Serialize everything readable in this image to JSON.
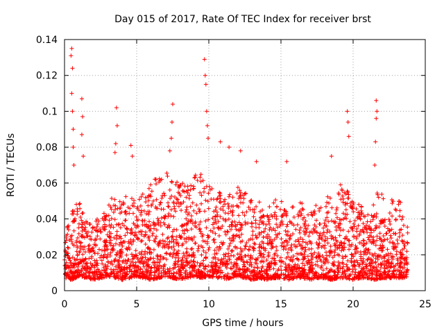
{
  "chart_data": {
    "type": "scatter",
    "title": "Day 015 of 2017, Rate Of TEC Index for receiver brst",
    "xlabel": "GPS time / hours",
    "ylabel": "ROTI / TECUs",
    "xlim": [
      0,
      25
    ],
    "ylim": [
      0,
      0.14
    ],
    "x_ticks": [
      0,
      5,
      10,
      15,
      20,
      25
    ],
    "x_tick_labels": [
      "0",
      "5",
      "10",
      "15",
      "20",
      "25"
    ],
    "y_ticks": [
      0,
      0.02,
      0.04,
      0.06,
      0.08,
      0.1,
      0.12,
      0.14
    ],
    "y_tick_labels": [
      "0",
      "0.02",
      "0.04",
      "0.06",
      "0.08",
      "0.1",
      "0.12",
      "0.14"
    ],
    "grid": true,
    "marker": "+",
    "color": "#ff0000",
    "series": [
      {
        "name": "ROTI",
        "envelope": {
          "x": [
            0,
            0.5,
            1,
            1.5,
            2,
            2.5,
            3,
            3.5,
            4,
            4.5,
            5,
            5.5,
            6,
            6.5,
            7,
            7.5,
            8,
            8.5,
            9,
            9.5,
            10,
            10.5,
            11,
            11.5,
            12,
            12.5,
            13,
            13.5,
            14,
            14.5,
            15,
            15.5,
            16,
            16.5,
            17,
            17.5,
            18,
            18.5,
            19,
            19.5,
            20,
            20.5,
            21,
            21.5,
            22,
            22.5,
            23,
            23.5,
            23.8
          ],
          "y_min": [
            0.007,
            0.006,
            0.008,
            0.007,
            0.006,
            0.007,
            0.008,
            0.007,
            0.006,
            0.007,
            0.008,
            0.007,
            0.006,
            0.007,
            0.008,
            0.007,
            0.006,
            0.007,
            0.008,
            0.007,
            0.008,
            0.007,
            0.006,
            0.007,
            0.008,
            0.007,
            0.006,
            0.007,
            0.006,
            0.007,
            0.007,
            0.006,
            0.007,
            0.007,
            0.006,
            0.007,
            0.007,
            0.006,
            0.007,
            0.007,
            0.006,
            0.007,
            0.007,
            0.006,
            0.007,
            0.007,
            0.007,
            0.007,
            0.008
          ],
          "y_max": [
            0.035,
            0.045,
            0.05,
            0.04,
            0.038,
            0.045,
            0.048,
            0.055,
            0.05,
            0.055,
            0.05,
            0.055,
            0.06,
            0.065,
            0.065,
            0.068,
            0.06,
            0.06,
            0.065,
            0.065,
            0.06,
            0.058,
            0.055,
            0.055,
            0.058,
            0.055,
            0.05,
            0.05,
            0.045,
            0.05,
            0.055,
            0.045,
            0.05,
            0.05,
            0.045,
            0.048,
            0.05,
            0.055,
            0.06,
            0.058,
            0.05,
            0.048,
            0.045,
            0.055,
            0.055,
            0.05,
            0.055,
            0.045,
            0.035
          ]
        },
        "spikes": [
          {
            "x": 0.5,
            "y": 0.135
          },
          {
            "x": 0.45,
            "y": 0.131
          },
          {
            "x": 0.55,
            "y": 0.124
          },
          {
            "x": 0.5,
            "y": 0.11
          },
          {
            "x": 0.55,
            "y": 0.1
          },
          {
            "x": 0.6,
            "y": 0.09
          },
          {
            "x": 0.6,
            "y": 0.08
          },
          {
            "x": 0.65,
            "y": 0.07
          },
          {
            "x": 1.2,
            "y": 0.107
          },
          {
            "x": 1.25,
            "y": 0.097
          },
          {
            "x": 1.2,
            "y": 0.087
          },
          {
            "x": 1.3,
            "y": 0.075
          },
          {
            "x": 3.6,
            "y": 0.102
          },
          {
            "x": 3.65,
            "y": 0.092
          },
          {
            "x": 3.55,
            "y": 0.082
          },
          {
            "x": 3.5,
            "y": 0.077
          },
          {
            "x": 4.6,
            "y": 0.081
          },
          {
            "x": 4.7,
            "y": 0.075
          },
          {
            "x": 7.5,
            "y": 0.104
          },
          {
            "x": 7.45,
            "y": 0.094
          },
          {
            "x": 7.4,
            "y": 0.085
          },
          {
            "x": 7.3,
            "y": 0.078
          },
          {
            "x": 9.7,
            "y": 0.129
          },
          {
            "x": 9.75,
            "y": 0.12
          },
          {
            "x": 9.8,
            "y": 0.115
          },
          {
            "x": 9.85,
            "y": 0.1
          },
          {
            "x": 9.9,
            "y": 0.092
          },
          {
            "x": 9.95,
            "y": 0.085
          },
          {
            "x": 10.8,
            "y": 0.083
          },
          {
            "x": 11.4,
            "y": 0.08
          },
          {
            "x": 12.2,
            "y": 0.078
          },
          {
            "x": 13.3,
            "y": 0.072
          },
          {
            "x": 15.4,
            "y": 0.072
          },
          {
            "x": 18.5,
            "y": 0.075
          },
          {
            "x": 19.6,
            "y": 0.1
          },
          {
            "x": 19.65,
            "y": 0.094
          },
          {
            "x": 19.7,
            "y": 0.086
          },
          {
            "x": 21.6,
            "y": 0.106
          },
          {
            "x": 21.65,
            "y": 0.1
          },
          {
            "x": 21.6,
            "y": 0.096
          },
          {
            "x": 21.55,
            "y": 0.083
          },
          {
            "x": 21.5,
            "y": 0.07
          }
        ]
      }
    ]
  }
}
